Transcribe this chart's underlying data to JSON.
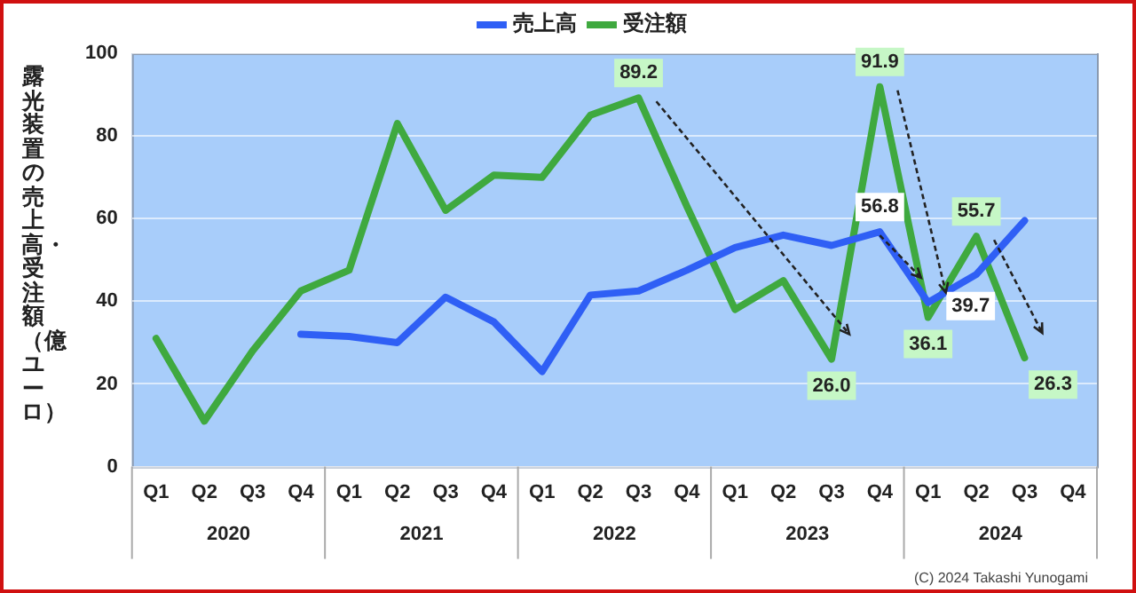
{
  "chart_data": {
    "type": "line",
    "ylabel": "露光装置の売上高・受注額（億ユーロ）",
    "categories": [
      "Q1",
      "Q2",
      "Q3",
      "Q4",
      "Q1",
      "Q2",
      "Q3",
      "Q4",
      "Q1",
      "Q2",
      "Q3",
      "Q4",
      "Q1",
      "Q2",
      "Q3",
      "Q4",
      "Q1",
      "Q2",
      "Q3",
      "Q4"
    ],
    "series": [
      {
        "name": "売上高",
        "color": "#2f5ff5",
        "values": [
          null,
          null,
          null,
          32,
          31.5,
          30,
          41,
          35,
          23,
          41.5,
          42.5,
          47.5,
          53,
          56,
          53.5,
          56.8,
          39.7,
          46.5,
          59.5,
          null
        ],
        "value_labels": [
          null,
          null,
          null,
          null,
          null,
          null,
          null,
          null,
          null,
          null,
          null,
          null,
          null,
          null,
          null,
          "56.8",
          "39.7",
          null,
          null,
          null
        ]
      },
      {
        "name": "受注額",
        "color": "#3fa93f",
        "values": [
          31,
          11,
          28,
          42.5,
          47.5,
          83,
          62,
          70.5,
          70,
          85,
          89.2,
          63,
          38,
          45,
          26.0,
          91.9,
          36.1,
          55.7,
          26.3,
          null
        ],
        "value_labels": [
          null,
          null,
          null,
          null,
          null,
          null,
          null,
          null,
          null,
          null,
          "89.2",
          null,
          null,
          null,
          "26.0",
          "91.9",
          "36.1",
          "55.7",
          "26.3",
          null
        ]
      }
    ],
    "ylim": [
      0,
      100
    ],
    "yticks": [
      0,
      20,
      40,
      60,
      80,
      100
    ],
    "grid": "y",
    "legend": "top",
    "marker": "none",
    "line_style": "solid",
    "annotations": [
      "2020",
      "2021",
      "2022",
      "2023",
      "2024",
      "(C) 2024 Takashi Yunogami"
    ]
  }
}
